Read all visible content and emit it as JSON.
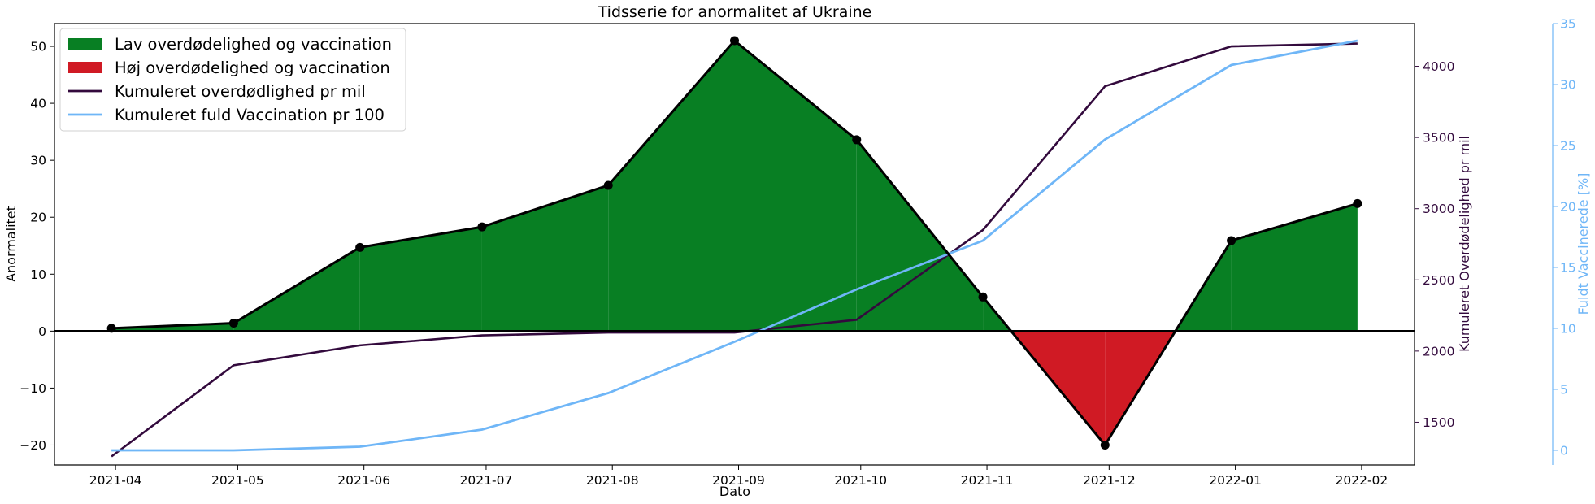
{
  "chart_data": {
    "type": "area",
    "title": "Tidsserie for anormalitet af Ukraine",
    "xlabel": "Dato",
    "x_ticks": [
      "2021-04",
      "2021-05",
      "2021-06",
      "2021-07",
      "2021-08",
      "2021-09",
      "2021-10",
      "2021-11",
      "2021-12",
      "2022-01",
      "2022-02"
    ],
    "x": [
      "2021-03-31",
      "2021-04-30",
      "2021-05-31",
      "2021-06-30",
      "2021-07-31",
      "2021-08-31",
      "2021-09-30",
      "2021-10-31",
      "2021-11-30",
      "2021-12-31",
      "2022-01-31"
    ],
    "x_range": [
      "2021-03-17",
      "2022-02-14"
    ],
    "y_left": {
      "label": "Anormalitet",
      "ylim": [
        -23.5,
        54
      ],
      "ticks": [
        -20,
        -10,
        0,
        10,
        20,
        30,
        40,
        50
      ]
    },
    "y_right": {
      "label": "Kumuleret Overdødelighed pr mil",
      "ylim": [
        1200,
        4300
      ],
      "ticks": [
        1500,
        2000,
        2500,
        3000,
        3500,
        4000
      ],
      "color": "#330a3d"
    },
    "y_right2": {
      "label": "Fuldt Vaccinerede [%]",
      "ylim": [
        -1.2,
        35
      ],
      "ticks": [
        0,
        5,
        10,
        15,
        20,
        25,
        30,
        35
      ],
      "color": "#6fb6f7"
    },
    "series": [
      {
        "name": "Lav overdødelighed og vaccination",
        "kind": "area_positive",
        "axis": "left",
        "color": "#087f23"
      },
      {
        "name": "Høj overdødelighed og vaccination",
        "kind": "area_negative",
        "axis": "left",
        "color": "#d01a24"
      },
      {
        "name": "Kumuleret overdødlighed pr mil",
        "kind": "line",
        "axis": "right",
        "values": [
          1260,
          1900,
          2040,
          2110,
          2130,
          2130,
          2220,
          2850,
          3860,
          4140,
          4160
        ],
        "color": "#330a3d"
      },
      {
        "name": "Kumuleret fuld Vaccination pr 100",
        "kind": "line",
        "axis": "right2",
        "values": [
          0,
          0,
          0.3,
          1.7,
          4.7,
          8.9,
          13.2,
          17.2,
          25.5,
          31.6,
          33.6
        ],
        "color": "#6fb6f7"
      }
    ],
    "anomaly": [
      0.5,
      1.4,
      14.7,
      18.3,
      25.6,
      51.0,
      33.6,
      6.0,
      -20.0,
      15.9,
      22.4
    ],
    "legend_position": "top-left",
    "grid": false
  }
}
